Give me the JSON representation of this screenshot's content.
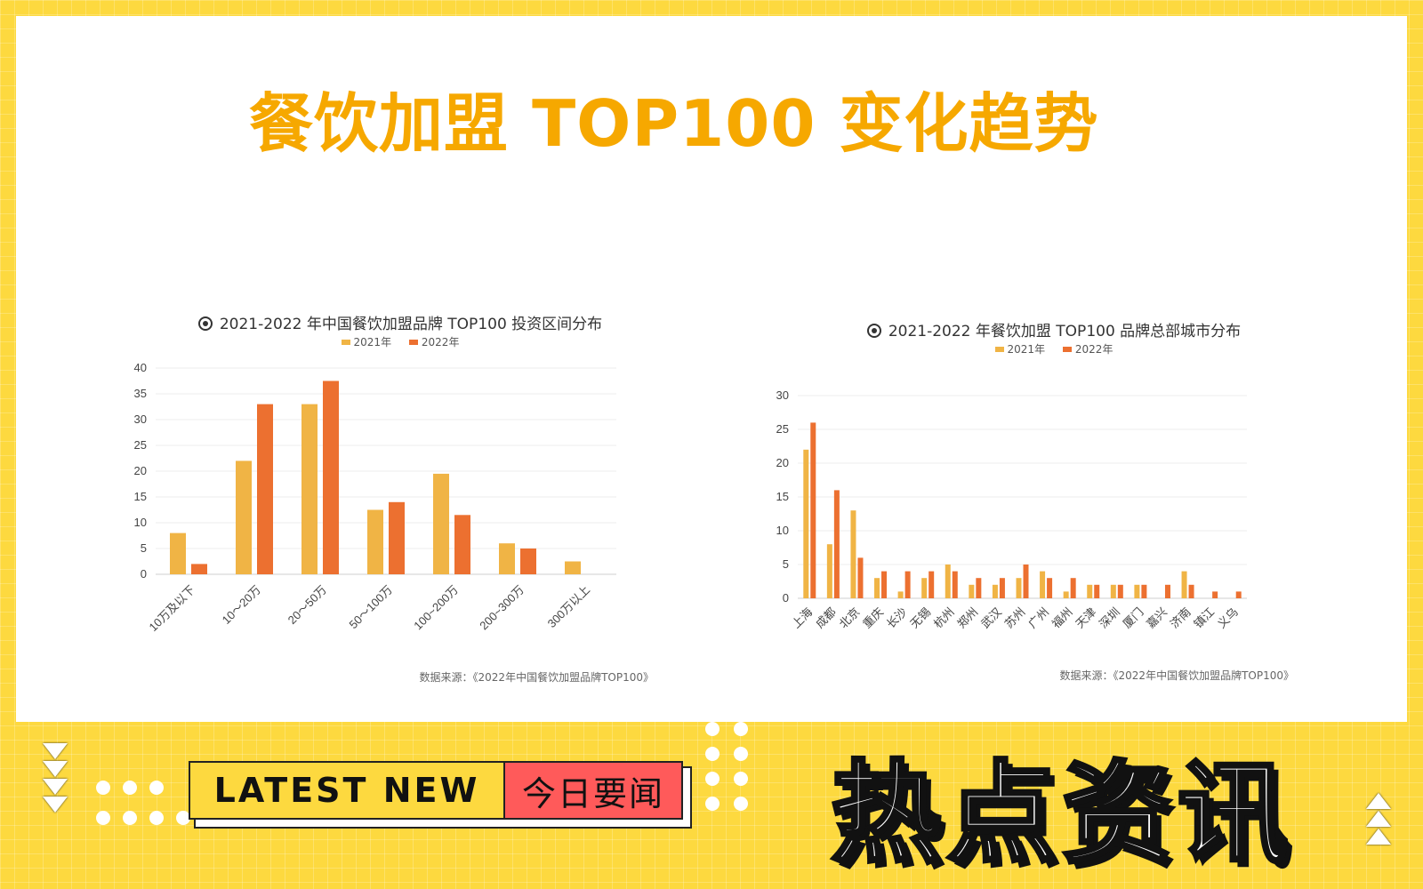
{
  "main_title": "餐饮加盟 TOP100 变化趋势",
  "colors": {
    "series_2021": "#f0b445",
    "series_2022": "#ec7030",
    "accent_title": "#f6a800",
    "background": "#fdd93f",
    "tag_red": "#ff5a5a"
  },
  "chart_data": [
    {
      "type": "bar",
      "title": "2021-2022 年中国餐饮加盟品牌 TOP100 投资区间分布",
      "categories": [
        "10万及以下",
        "10～20万",
        "20～50万",
        "50～100万",
        "100~200万",
        "200~300万",
        "300万以上"
      ],
      "series": [
        {
          "name": "2021年",
          "values": [
            8,
            22,
            33,
            12.5,
            19.5,
            6,
            2.5
          ]
        },
        {
          "name": "2022年",
          "values": [
            2,
            33,
            37.5,
            14,
            11.5,
            5,
            0
          ]
        }
      ],
      "yticks": [
        "0",
        "5",
        "10",
        "15",
        "20",
        "25",
        "30",
        "35",
        "40"
      ],
      "ylim": [
        0,
        40
      ],
      "grid": true,
      "legend": "top-center",
      "source": "数据来源：《2022年中国餐饮加盟品牌TOP100》"
    },
    {
      "type": "bar",
      "title": "2021-2022 年餐饮加盟 TOP100 品牌总部城市分布",
      "categories": [
        "上海",
        "成都",
        "北京",
        "重庆",
        "长沙",
        "无锡",
        "杭州",
        "郑州",
        "武汉",
        "苏州",
        "广州",
        "福州",
        "天津",
        "深圳",
        "厦门",
        "嘉兴",
        "济南",
        "镇江",
        "义乌"
      ],
      "series": [
        {
          "name": "2021年",
          "values": [
            22,
            8,
            13,
            3,
            1,
            3,
            5,
            2,
            2,
            3,
            4,
            1,
            2,
            2,
            2,
            0,
            4,
            0,
            0
          ]
        },
        {
          "name": "2022年",
          "values": [
            26,
            16,
            6,
            4,
            4,
            4,
            4,
            3,
            3,
            5,
            3,
            3,
            2,
            2,
            2,
            2,
            2,
            1,
            1
          ]
        }
      ],
      "yticks": [
        "0",
        "5",
        "10",
        "15",
        "20",
        "25",
        "30"
      ],
      "ylim": [
        0,
        30
      ],
      "grid": true,
      "legend": "top-center",
      "source": "数据来源：《2022年中国餐饮加盟品牌TOP100》"
    }
  ],
  "banner": {
    "tag_en": "LATEST NEW",
    "tag_cn": "今日要闻",
    "headline": "热点资讯"
  }
}
